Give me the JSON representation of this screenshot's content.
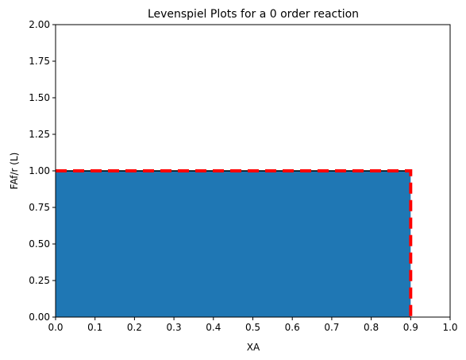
{
  "chart_data": {
    "type": "area",
    "title": "Levenspiel Plots for a 0 order reaction",
    "xlabel": "XA",
    "ylabel": "FAf/r (L)",
    "xlim": [
      0.0,
      1.0
    ],
    "ylim": [
      0.0,
      2.0
    ],
    "x_ticks": [
      "0.0",
      "0.1",
      "0.2",
      "0.3",
      "0.4",
      "0.5",
      "0.6",
      "0.7",
      "0.8",
      "0.9",
      "1.0"
    ],
    "y_ticks": [
      "0.00",
      "0.25",
      "0.50",
      "0.75",
      "1.00",
      "1.25",
      "1.50",
      "1.75",
      "2.00"
    ],
    "grid": false,
    "legend": "none",
    "series": [
      {
        "kind": "line",
        "style": "solid",
        "color": "#000000",
        "x": [
          0.0,
          0.9
        ],
        "y": [
          1.0,
          1.0
        ]
      },
      {
        "kind": "filled-area",
        "color": "#1f77b4",
        "x": [
          0.0,
          0.9
        ],
        "y": [
          1.0,
          1.0
        ]
      },
      {
        "kind": "line",
        "style": "dashed",
        "color": "#ff0000",
        "x": [
          0.0,
          0.9,
          0.9
        ],
        "y": [
          1.0,
          1.0,
          0.0
        ]
      }
    ]
  }
}
